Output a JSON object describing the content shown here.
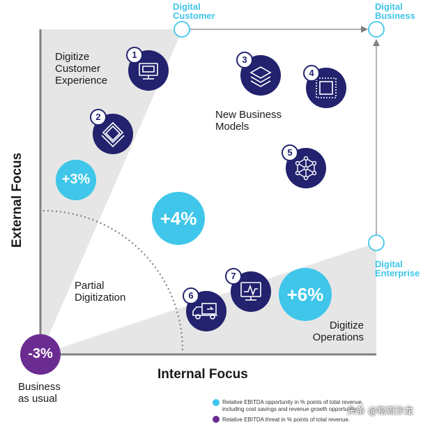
{
  "corners": {
    "digital_customer": [
      "Digital",
      "Customer"
    ],
    "digital_business": [
      "Digital",
      "Business"
    ],
    "digital_enterprise": [
      "Digital",
      "Enterprise"
    ]
  },
  "regions": {
    "digitize_customer_experience": [
      "Digitize",
      "Customer",
      "Experience"
    ],
    "new_business_models": [
      "New Business",
      "Models"
    ],
    "partial_digitization": [
      "Partial",
      "Digitization"
    ],
    "digitize_operations": [
      "Digitize",
      "Operations"
    ],
    "business_as_usual": [
      "Business",
      "as usual"
    ]
  },
  "axes": {
    "x_label": "Internal Focus",
    "y_label": "External Focus"
  },
  "bubbles": {
    "plus3": "+3%",
    "plus4": "+4%",
    "plus6": "+6%",
    "minus3": "-3%"
  },
  "icons": [
    {
      "number": "1",
      "icon": "card-terminal-icon"
    },
    {
      "number": "2",
      "icon": "layered-diamond-icon"
    },
    {
      "number": "3",
      "icon": "stacked-layers-icon"
    },
    {
      "number": "4",
      "icon": "nested-squares-icon"
    },
    {
      "number": "5",
      "icon": "network-nodes-icon"
    },
    {
      "number": "6",
      "icon": "delivery-truck-icon"
    },
    {
      "number": "7",
      "icon": "monitor-chart-icon"
    }
  ],
  "legend": {
    "opportunity": [
      "Relative EBITDA opportunity in % points of total revenue,",
      "including cost savings and revenue growth opportunity."
    ],
    "threat": "Relative EBITDA threat in % points of total revenue."
  },
  "watermark": "头条 @物流沙龙",
  "colors": {
    "cyan": "#3fc6ea",
    "navy": "#22226e",
    "purple": "#6b2c91",
    "shade": "#e6e6e6",
    "axis": "#808080"
  }
}
